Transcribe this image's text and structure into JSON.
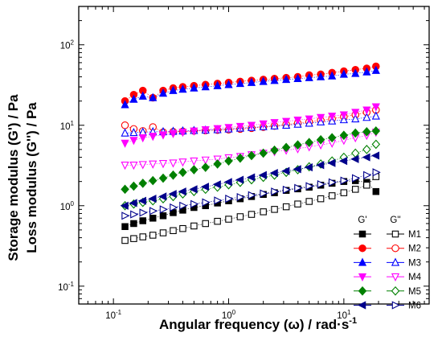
{
  "chart_data": {
    "type": "scatter",
    "title": "",
    "xlabel": "Angular frequency (ω) / rad·s",
    "xlabel_sup": "-1",
    "ylabel_lines": [
      "Storage modulus (G') / Pa",
      "Loss modulus (G'') / Pa"
    ],
    "x_scale": "log",
    "y_scale": "log",
    "xlim": [
      0.05,
      55
    ],
    "ylim": [
      0.06,
      300
    ],
    "x_ticks": [
      {
        "base": "10",
        "exp": "-1"
      },
      {
        "base": "10",
        "exp": "0"
      },
      {
        "base": "10",
        "exp": "1"
      }
    ],
    "y_ticks": [
      {
        "base": "10",
        "exp": "-1"
      },
      {
        "base": "10",
        "exp": "0"
      },
      {
        "base": "10",
        "exp": "1"
      },
      {
        "base": "10",
        "exp": "2"
      }
    ],
    "grid": false,
    "legend_position": "bottom-right",
    "legend_headers": [
      "G'",
      "G''"
    ],
    "x": [
      0.126,
      0.15,
      0.18,
      0.22,
      0.27,
      0.33,
      0.4,
      0.5,
      0.63,
      0.8,
      1.0,
      1.26,
      1.58,
      2.0,
      2.5,
      3.16,
      3.98,
      5.0,
      6.3,
      7.9,
      10.0,
      12.6,
      15.8,
      19.0
    ],
    "series": [
      {
        "name": "M1",
        "modulus": "G'",
        "color": "#000000",
        "marker": "square",
        "filled": true,
        "values": [
          0.55,
          0.6,
          0.65,
          0.7,
          0.75,
          0.82,
          0.88,
          0.95,
          1.0,
          1.08,
          1.15,
          1.22,
          1.3,
          1.38,
          1.45,
          1.55,
          1.62,
          1.7,
          1.8,
          1.9,
          2.0,
          2.05,
          1.95,
          1.5
        ]
      },
      {
        "name": "M1",
        "modulus": "G''",
        "color": "#000000",
        "marker": "square",
        "filled": false,
        "values": [
          0.37,
          0.39,
          0.41,
          0.43,
          0.46,
          0.49,
          0.52,
          0.56,
          0.6,
          0.64,
          0.68,
          0.73,
          0.78,
          0.84,
          0.9,
          0.97,
          1.05,
          1.13,
          1.22,
          1.33,
          1.45,
          1.6,
          1.8,
          2.3
        ]
      },
      {
        "name": "M2",
        "modulus": "G'",
        "color": "#ff0000",
        "marker": "circle",
        "filled": true,
        "values": [
          20,
          24,
          27,
          22,
          27,
          29,
          30,
          31,
          32,
          33,
          34,
          35,
          36,
          37,
          38,
          39,
          40,
          42,
          43,
          45,
          47,
          49,
          51,
          54
        ]
      },
      {
        "name": "M2",
        "modulus": "G''",
        "color": "#ff0000",
        "marker": "circle",
        "filled": false,
        "values": [
          10,
          9,
          8.5,
          9.5,
          8.2,
          8.3,
          8.4,
          8.5,
          8.6,
          8.7,
          8.8,
          9.0,
          9.2,
          9.5,
          9.8,
          10.2,
          10.6,
          11.0,
          11.5,
          12.0,
          12.8,
          13.5,
          14.5,
          15.5
        ]
      },
      {
        "name": "M3",
        "modulus": "G'",
        "color": "#0000ff",
        "marker": "triangle-up",
        "filled": true,
        "values": [
          18,
          21,
          23,
          22,
          25,
          27,
          28,
          29,
          30,
          31,
          32,
          33,
          34,
          35,
          36,
          37,
          38,
          39,
          40,
          41,
          43,
          44,
          46,
          48
        ]
      },
      {
        "name": "M3",
        "modulus": "G''",
        "color": "#0000ff",
        "marker": "triangle-up",
        "filled": false,
        "values": [
          8.0,
          8.1,
          8.2,
          8.3,
          8.3,
          8.4,
          8.5,
          8.6,
          8.7,
          8.8,
          9.0,
          9.2,
          9.4,
          9.6,
          9.8,
          10.0,
          10.3,
          10.6,
          11.0,
          11.3,
          11.7,
          12.0,
          12.5,
          13.0
        ]
      },
      {
        "name": "M4",
        "modulus": "G'",
        "color": "#ff00ff",
        "marker": "triangle-down",
        "filled": true,
        "values": [
          6.0,
          6.5,
          7.0,
          7.3,
          7.6,
          7.9,
          8.2,
          8.5,
          8.8,
          9.1,
          9.4,
          9.7,
          10.0,
          10.4,
          10.8,
          11.2,
          11.6,
          12.0,
          12.5,
          13.0,
          13.5,
          14.5,
          15.5,
          17.0
        ]
      },
      {
        "name": "M4",
        "modulus": "G''",
        "color": "#ff00ff",
        "marker": "triangle-down",
        "filled": false,
        "values": [
          3.2,
          3.2,
          3.25,
          3.3,
          3.35,
          3.4,
          3.5,
          3.6,
          3.7,
          3.8,
          3.95,
          4.1,
          4.3,
          4.5,
          4.7,
          4.9,
          5.1,
          5.4,
          5.7,
          6.0,
          6.5,
          7.0,
          7.5,
          8.2
        ]
      },
      {
        "name": "M5",
        "modulus": "G'",
        "color": "#008000",
        "marker": "diamond",
        "filled": true,
        "values": [
          1.6,
          1.75,
          1.9,
          2.05,
          2.2,
          2.4,
          2.6,
          2.8,
          3.0,
          3.3,
          3.6,
          3.9,
          4.2,
          4.5,
          4.9,
          5.3,
          5.7,
          6.1,
          6.6,
          7.0,
          7.5,
          8.0,
          8.3,
          8.5
        ]
      },
      {
        "name": "M5",
        "modulus": "G''",
        "color": "#008000",
        "marker": "diamond",
        "filled": false,
        "values": [
          1.0,
          1.05,
          1.1,
          1.15,
          1.22,
          1.3,
          1.4,
          1.5,
          1.6,
          1.7,
          1.82,
          1.95,
          2.1,
          2.25,
          2.4,
          2.6,
          2.8,
          3.05,
          3.3,
          3.6,
          4.0,
          4.5,
          5.0,
          5.8
        ]
      },
      {
        "name": "M6",
        "modulus": "G'",
        "color": "#00008b",
        "marker": "triangle-left",
        "filled": true,
        "values": [
          1.0,
          1.08,
          1.15,
          1.22,
          1.3,
          1.4,
          1.5,
          1.6,
          1.72,
          1.84,
          1.97,
          2.1,
          2.25,
          2.4,
          2.55,
          2.7,
          2.85,
          3.0,
          3.2,
          3.4,
          3.6,
          3.8,
          4.0,
          4.2
        ]
      },
      {
        "name": "M6",
        "modulus": "G''",
        "color": "#00008b",
        "marker": "triangle-right",
        "filled": false,
        "values": [
          0.75,
          0.78,
          0.82,
          0.86,
          0.9,
          0.95,
          1.0,
          1.05,
          1.1,
          1.16,
          1.22,
          1.28,
          1.35,
          1.42,
          1.5,
          1.58,
          1.66,
          1.75,
          1.85,
          1.95,
          2.05,
          2.2,
          2.4,
          2.6
        ]
      }
    ],
    "legend": [
      {
        "name": "M1",
        "color": "#000000",
        "marker_g1": "square",
        "marker_g2": "square"
      },
      {
        "name": "M2",
        "color": "#ff0000",
        "marker_g1": "circle",
        "marker_g2": "circle"
      },
      {
        "name": "M3",
        "color": "#0000ff",
        "marker_g1": "triangle-up",
        "marker_g2": "triangle-up"
      },
      {
        "name": "M4",
        "color": "#ff00ff",
        "marker_g1": "triangle-down",
        "marker_g2": "triangle-down"
      },
      {
        "name": "M5",
        "color": "#008000",
        "marker_g1": "diamond",
        "marker_g2": "diamond"
      },
      {
        "name": "M6",
        "color": "#00008b",
        "marker_g1": "triangle-left",
        "marker_g2": "triangle-right"
      }
    ]
  }
}
